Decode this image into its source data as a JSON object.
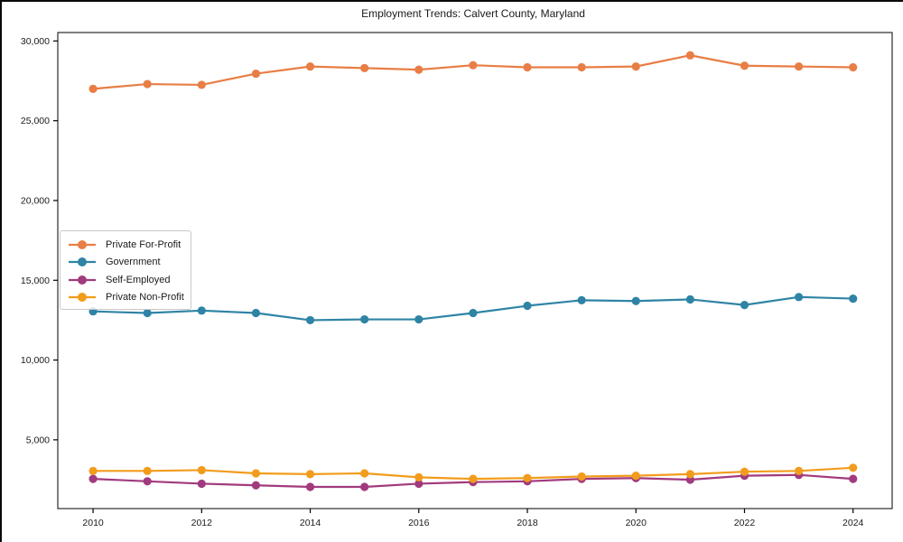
{
  "chart_data": {
    "type": "line",
    "title": "Employment Trends: Calvert County, Maryland",
    "xlabel": "",
    "ylabel": "",
    "x": [
      2010,
      2011,
      2012,
      2013,
      2014,
      2015,
      2016,
      2017,
      2018,
      2019,
      2020,
      2021,
      2022,
      2023,
      2024
    ],
    "series": [
      {
        "name": "Private For-Profit",
        "color": "#e87e45",
        "values": [
          27000,
          27300,
          27250,
          27950,
          28400,
          28300,
          28200,
          28480,
          28350,
          28350,
          28400,
          29100,
          28450,
          28400,
          28350
        ]
      },
      {
        "name": "Government",
        "color": "#2f84a5",
        "values": [
          13050,
          12950,
          13100,
          12950,
          12500,
          12550,
          12550,
          12950,
          13400,
          13750,
          13700,
          13800,
          13450,
          13950,
          13850
        ]
      },
      {
        "name": "Self-Employed",
        "color": "#a13a7e",
        "values": [
          2550,
          2400,
          2250,
          2150,
          2050,
          2050,
          2250,
          2350,
          2400,
          2550,
          2600,
          2500,
          2750,
          2800,
          2550
        ]
      },
      {
        "name": "Private Non-Profit",
        "color": "#f29c1c",
        "values": [
          3050,
          3050,
          3100,
          2900,
          2850,
          2900,
          2650,
          2550,
          2600,
          2700,
          2750,
          2850,
          3000,
          3050,
          3250
        ]
      }
    ],
    "xlim": [
      2009.35,
      2024.72
    ],
    "ylim": [
      690,
      30530
    ],
    "xticks": [
      2010,
      2012,
      2014,
      2016,
      2018,
      2020,
      2022,
      2024
    ],
    "yticks": [
      5000,
      10000,
      15000,
      20000,
      25000,
      30000
    ],
    "ytick_labels": [
      "5,000",
      "10,000",
      "15,000",
      "20,000",
      "25,000",
      "30,000"
    ],
    "grid": false,
    "legend_position": "center-left",
    "marker": "circle",
    "axis_color": "#000000",
    "background_color": "#ffffff"
  }
}
